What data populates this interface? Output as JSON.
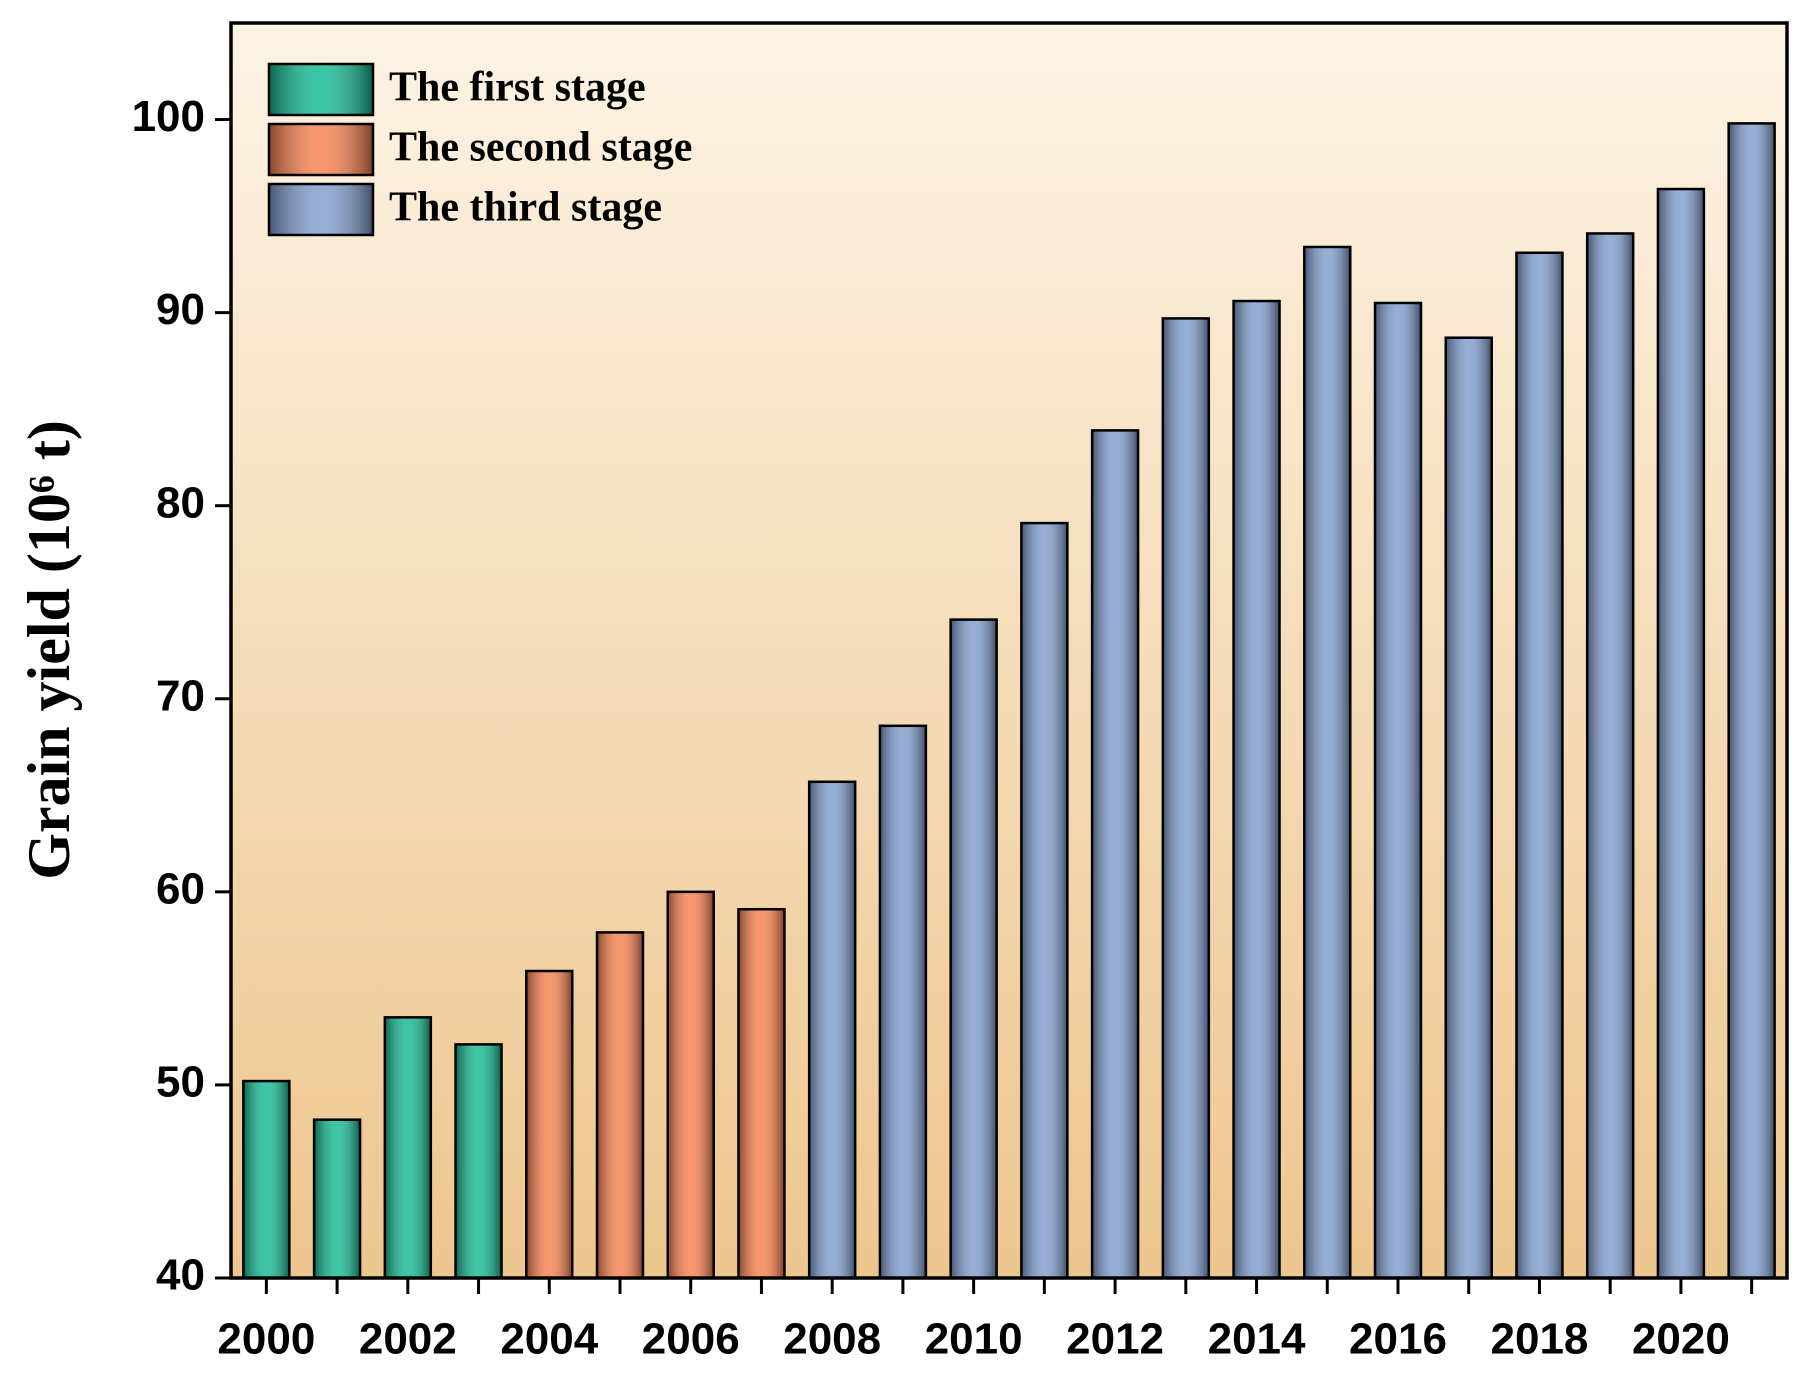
{
  "chart_data": {
    "type": "bar",
    "y_label": "Grain yield (10⁶ t)",
    "categories": [
      "2000",
      null,
      "2002",
      null,
      "2004",
      null,
      "2006",
      null,
      "2008",
      null,
      "2010",
      null,
      "2012",
      null,
      "2014",
      null,
      "2016",
      null,
      "2018",
      null,
      "2020",
      null
    ],
    "series": [
      {
        "name": "The first stage",
        "color": "#14b892",
        "values": [
          50.2,
          48.2,
          53.5,
          52.1,
          null,
          null,
          null,
          null,
          null,
          null,
          null,
          null,
          null,
          null,
          null,
          null,
          null,
          null,
          null,
          null,
          null,
          null
        ]
      },
      {
        "name": "The second stage",
        "color": "#f7804e",
        "values": [
          null,
          null,
          null,
          null,
          55.9,
          57.9,
          60.0,
          59.1,
          null,
          null,
          null,
          null,
          null,
          null,
          null,
          null,
          null,
          null,
          null,
          null,
          null,
          null
        ]
      },
      {
        "name": "The third stage",
        "color": "#7f9bcc",
        "values": [
          null,
          null,
          null,
          null,
          null,
          null,
          null,
          null,
          65.7,
          68.6,
          74.1,
          79.1,
          83.9,
          89.7,
          90.6,
          93.4,
          90.5,
          88.7,
          93.1,
          94.1,
          96.4,
          99.8
        ]
      }
    ],
    "ylim": [
      40,
      105
    ],
    "yticks": [
      40,
      50,
      60,
      70,
      80,
      90,
      100
    ],
    "legend": "upper-left"
  }
}
